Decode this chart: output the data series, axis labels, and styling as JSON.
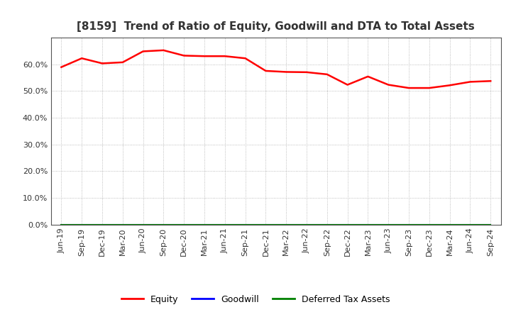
{
  "title": "[8159]  Trend of Ratio of Equity, Goodwill and DTA to Total Assets",
  "x_labels": [
    "Jun-19",
    "Sep-19",
    "Dec-19",
    "Mar-20",
    "Jun-20",
    "Sep-20",
    "Dec-20",
    "Mar-21",
    "Jun-21",
    "Sep-21",
    "Dec-21",
    "Mar-22",
    "Jun-22",
    "Sep-22",
    "Dec-22",
    "Mar-23",
    "Jun-23",
    "Sep-23",
    "Dec-23",
    "Mar-24",
    "Jun-24",
    "Sep-24"
  ],
  "equity": [
    0.589,
    0.622,
    0.603,
    0.607,
    0.648,
    0.652,
    0.632,
    0.63,
    0.63,
    0.622,
    0.575,
    0.571,
    0.57,
    0.562,
    0.523,
    0.554,
    0.523,
    0.511,
    0.511,
    0.521,
    0.534,
    0.537
  ],
  "goodwill": [
    0.0,
    0.0,
    0.0,
    0.0,
    0.0,
    0.0,
    0.0,
    0.0,
    0.0,
    0.0,
    0.0,
    0.0,
    0.0,
    0.0,
    0.0,
    0.0,
    0.0,
    0.0,
    0.0,
    0.0,
    0.0,
    0.0
  ],
  "dta": [
    0.0,
    0.0,
    0.0,
    0.0,
    0.0,
    0.0,
    0.0,
    0.0,
    0.0,
    0.0,
    0.0,
    0.0,
    0.0,
    0.0,
    0.0,
    0.0,
    0.0,
    0.0,
    0.0,
    0.0,
    0.0,
    0.0
  ],
  "equity_color": "#ff0000",
  "goodwill_color": "#0000ff",
  "dta_color": "#008000",
  "ylim": [
    0.0,
    0.7
  ],
  "yticks": [
    0.0,
    0.1,
    0.2,
    0.3,
    0.4,
    0.5,
    0.6
  ],
  "background_color": "#ffffff",
  "plot_bg_color": "#ffffff",
  "grid_color": "#aaaaaa",
  "title_fontsize": 11,
  "tick_fontsize": 8,
  "legend_labels": [
    "Equity",
    "Goodwill",
    "Deferred Tax Assets"
  ],
  "legend_colors": [
    "#ff0000",
    "#0000ff",
    "#008000"
  ]
}
